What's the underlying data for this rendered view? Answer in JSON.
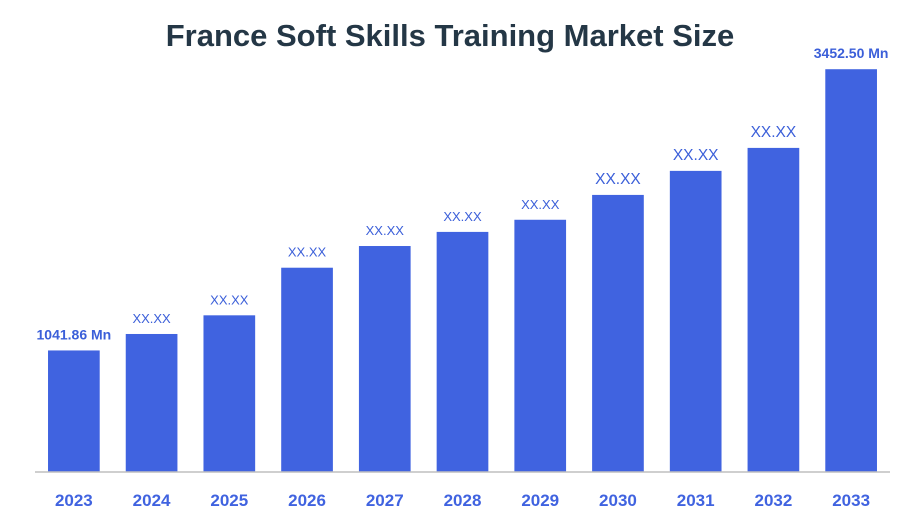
{
  "chart_data": {
    "type": "bar",
    "title": "France Soft Skills Training Market Size",
    "categories": [
      "2023",
      "2024",
      "2025",
      "2026",
      "2027",
      "2028",
      "2029",
      "2030",
      "2031",
      "2032",
      "2033"
    ],
    "values": [
      1041.86,
      1183,
      1343,
      1751,
      1937,
      2058,
      2162,
      2375,
      2581,
      2778,
      3452.5
    ],
    "data_labels": [
      "1041.86 Mn",
      "XX.XX",
      "XX.XX",
      "XX.XX",
      "XX.XX",
      "XX.XX",
      "XX.XX",
      "XX.XX",
      "XX.XX",
      "XX.XX",
      "3452.50 Mn"
    ],
    "xlabel": "",
    "ylabel": "",
    "ylim": [
      0,
      3600
    ],
    "grid": false,
    "colors": {
      "bar": "#4063e0",
      "title": "#243746",
      "label": "#3b5fd9",
      "axis": "#bfbfbf"
    }
  }
}
